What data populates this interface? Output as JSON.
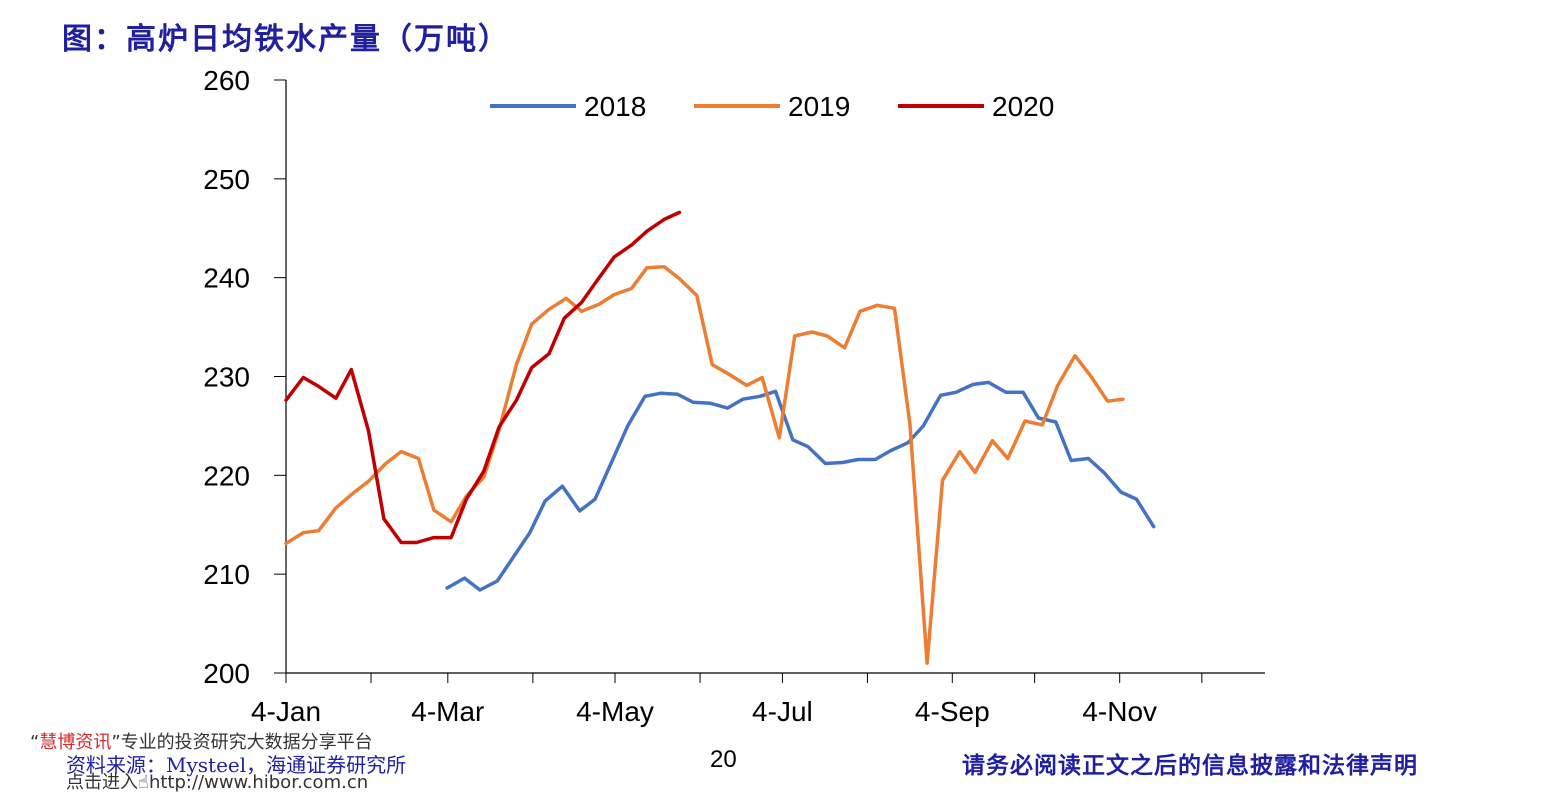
{
  "title": "图：高炉日均铁水产量（万吨）",
  "source": "资料来源：Mysteel，海通证券研究所",
  "page_number": "20",
  "disclaimer": "请务必阅读正文之后的信息披露和法律声明",
  "watermark": {
    "open_quote": "“",
    "brand": "慧博资讯",
    "close_quote": "”",
    "text": "专业的投资研究大数据分享平台",
    "link_prefix": "点击进入",
    "url": "http://www.hibor.com.cn"
  },
  "chart_data": {
    "type": "line",
    "title": "图：高炉日均铁水产量（万吨）",
    "x_axis": {
      "kind": "week-of-year",
      "range": [
        1,
        52
      ],
      "ticks": [
        {
          "label": "4-Jan",
          "week": 1
        },
        {
          "label": "4-Mar",
          "week": 9.43
        },
        {
          "label": "4-May",
          "week": 18.14
        },
        {
          "label": "4-Jul",
          "week": 26.86
        },
        {
          "label": "4-Sep",
          "week": 35.71
        },
        {
          "label": "4-Nov",
          "week": 44.43
        }
      ],
      "minor_ticks": [
        1,
        5.43,
        9.43,
        13.86,
        18.14,
        22.57,
        26.86,
        31.29,
        35.71,
        40,
        44.43,
        48.71
      ]
    },
    "y_axis": {
      "min": 200,
      "max": 260,
      "ticks": [
        200,
        210,
        220,
        230,
        240,
        250,
        260
      ]
    },
    "grid": false,
    "legend_position": "top",
    "series": [
      {
        "name": "2018",
        "color": "#4472c4",
        "points": [
          [
            9.4,
            208.6
          ],
          [
            10.3,
            209.6
          ],
          [
            11.1,
            208.4
          ],
          [
            12.0,
            209.3
          ],
          [
            12.8,
            211.6
          ],
          [
            13.7,
            214.2
          ],
          [
            14.5,
            217.4
          ],
          [
            15.4,
            218.9
          ],
          [
            16.3,
            216.4
          ],
          [
            17.1,
            217.6
          ],
          [
            18.0,
            221.5
          ],
          [
            18.8,
            225.0
          ],
          [
            19.7,
            228.0
          ],
          [
            20.5,
            228.3
          ],
          [
            21.4,
            228.2
          ],
          [
            22.2,
            227.4
          ],
          [
            23.1,
            227.3
          ],
          [
            24.0,
            226.8
          ],
          [
            24.8,
            227.7
          ],
          [
            25.7,
            228.0
          ],
          [
            26.5,
            228.5
          ],
          [
            27.4,
            223.6
          ],
          [
            28.2,
            222.9
          ],
          [
            29.1,
            221.2
          ],
          [
            30.0,
            221.3
          ],
          [
            30.8,
            221.6
          ],
          [
            31.7,
            221.6
          ],
          [
            32.5,
            222.5
          ],
          [
            33.4,
            223.3
          ],
          [
            34.2,
            225.0
          ],
          [
            35.1,
            228.1
          ],
          [
            35.9,
            228.4
          ],
          [
            36.8,
            229.2
          ],
          [
            37.6,
            229.4
          ],
          [
            38.5,
            228.4
          ],
          [
            39.4,
            228.4
          ],
          [
            40.2,
            225.8
          ],
          [
            41.1,
            225.4
          ],
          [
            41.9,
            221.5
          ],
          [
            42.8,
            221.7
          ],
          [
            43.6,
            220.3
          ],
          [
            44.5,
            218.3
          ],
          [
            45.3,
            217.6
          ],
          [
            46.2,
            214.8
          ]
        ]
      },
      {
        "name": "2019",
        "color": "#ed7d31",
        "points": [
          [
            1.0,
            213.1
          ],
          [
            1.9,
            214.2
          ],
          [
            2.7,
            214.4
          ],
          [
            3.6,
            216.7
          ],
          [
            4.5,
            218.2
          ],
          [
            5.3,
            219.4
          ],
          [
            6.2,
            221.2
          ],
          [
            7.0,
            222.4
          ],
          [
            7.9,
            221.7
          ],
          [
            8.7,
            216.5
          ],
          [
            9.6,
            215.3
          ],
          [
            10.4,
            217.9
          ],
          [
            11.3,
            219.8
          ],
          [
            12.1,
            224.6
          ],
          [
            13.0,
            231.2
          ],
          [
            13.8,
            235.3
          ],
          [
            14.7,
            236.8
          ],
          [
            15.6,
            237.9
          ],
          [
            16.4,
            236.6
          ],
          [
            17.3,
            237.3
          ],
          [
            18.1,
            238.3
          ],
          [
            19.0,
            238.9
          ],
          [
            19.8,
            241.0
          ],
          [
            20.7,
            241.1
          ],
          [
            21.5,
            239.9
          ],
          [
            22.4,
            238.2
          ],
          [
            23.2,
            231.2
          ],
          [
            24.1,
            230.2
          ],
          [
            25.0,
            229.1
          ],
          [
            25.8,
            229.9
          ],
          [
            26.7,
            223.8
          ],
          [
            27.5,
            234.1
          ],
          [
            28.4,
            234.5
          ],
          [
            29.2,
            234.1
          ],
          [
            30.1,
            232.9
          ],
          [
            30.9,
            236.6
          ],
          [
            31.8,
            237.2
          ],
          [
            32.7,
            236.9
          ],
          [
            33.5,
            225.2
          ],
          [
            34.4,
            201.0
          ],
          [
            35.2,
            219.5
          ],
          [
            36.1,
            222.4
          ],
          [
            36.9,
            220.3
          ],
          [
            37.8,
            223.5
          ],
          [
            38.6,
            221.7
          ],
          [
            39.5,
            225.5
          ],
          [
            40.4,
            225.1
          ],
          [
            41.2,
            229.1
          ],
          [
            42.1,
            232.1
          ],
          [
            42.9,
            230.1
          ],
          [
            43.8,
            227.5
          ],
          [
            44.6,
            227.7
          ]
        ]
      },
      {
        "name": "2020",
        "color": "#c00000",
        "points": [
          [
            1.0,
            227.6
          ],
          [
            1.9,
            229.9
          ],
          [
            2.7,
            229.0
          ],
          [
            3.6,
            227.8
          ],
          [
            4.4,
            230.7
          ],
          [
            5.3,
            224.5
          ],
          [
            6.1,
            215.6
          ],
          [
            7.0,
            213.2
          ],
          [
            7.8,
            213.2
          ],
          [
            8.7,
            213.7
          ],
          [
            9.6,
            213.7
          ],
          [
            10.4,
            217.6
          ],
          [
            11.3,
            220.4
          ],
          [
            12.1,
            224.9
          ],
          [
            13.0,
            227.6
          ],
          [
            13.8,
            230.9
          ],
          [
            14.7,
            232.3
          ],
          [
            15.5,
            235.9
          ],
          [
            16.4,
            237.5
          ],
          [
            17.2,
            239.7
          ],
          [
            18.1,
            242.1
          ],
          [
            19.0,
            243.3
          ],
          [
            19.8,
            244.7
          ],
          [
            20.7,
            245.9
          ],
          [
            21.5,
            246.6
          ]
        ]
      }
    ]
  }
}
